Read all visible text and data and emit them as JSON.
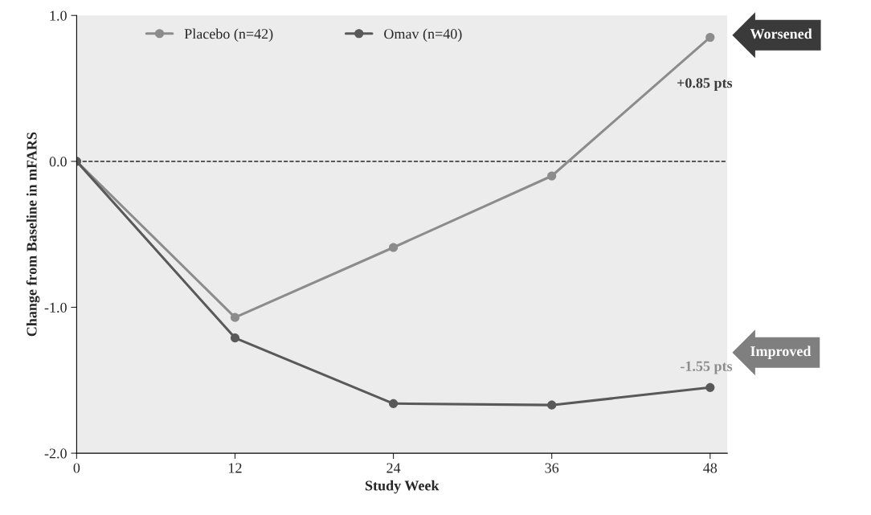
{
  "chart_data": {
    "type": "line",
    "xlabel": "Study Week",
    "ylabel": "Change from Baseline in mFARS",
    "x": [
      0,
      12,
      24,
      36,
      48
    ],
    "series": [
      {
        "name": "Placebo (n=42)",
        "color": "#8c8c8c",
        "values": [
          0,
          -1.07,
          -0.59,
          -0.1,
          0.85
        ]
      },
      {
        "name": "Omav (n=40)",
        "color": "#595959",
        "values": [
          0,
          -1.21,
          -1.66,
          -1.67,
          -1.55
        ]
      }
    ],
    "xlim": [
      0,
      49.3
    ],
    "xticks": [
      0,
      12,
      24,
      36,
      48
    ],
    "ylim": [
      -2,
      1
    ],
    "yticks": [
      {
        "value": 1,
        "label": "1.0"
      },
      {
        "value": 0,
        "label": "0.0"
      },
      {
        "value": -1,
        "label": "-1.0"
      },
      {
        "value": -2,
        "label": "-2.0"
      }
    ],
    "ref_lines": [
      {
        "axis": "y",
        "value": 0,
        "color": "#000000",
        "line_style": "dashed"
      }
    ],
    "annotations": [
      {
        "text": "+0.85 pts",
        "x": 48,
        "y": 0.85
      },
      {
        "text": "-1.55 pts",
        "x": 48,
        "y": -1.55
      },
      "Worsened",
      "Improved"
    ],
    "marker": "circle",
    "line_style": "solid",
    "grid": false,
    "legend": "top"
  }
}
